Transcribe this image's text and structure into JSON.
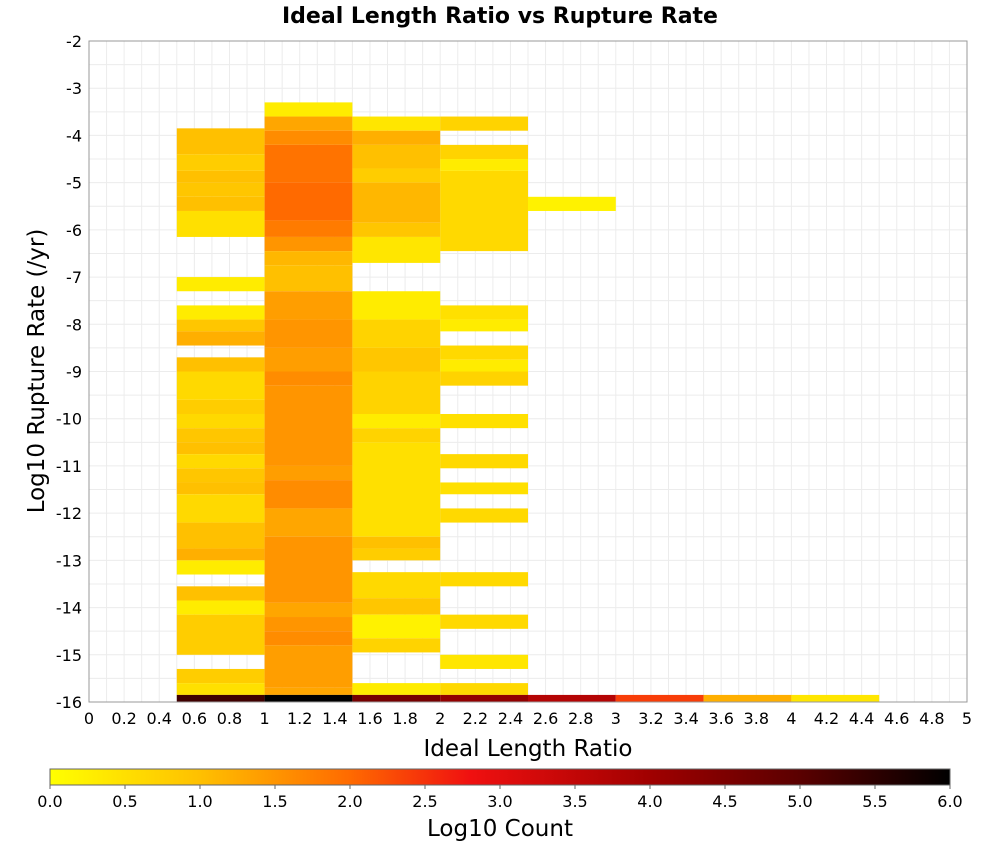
{
  "chart_data": {
    "type": "heatmap",
    "title": "Ideal Length Ratio vs Rupture Rate",
    "xlabel": "Ideal Length Ratio",
    "ylabel": "Log10 Rupture Rate (/yr)",
    "xlim": [
      0,
      5
    ],
    "ylim": [
      -16,
      -2
    ],
    "grid": true,
    "x_ticks": [
      "0",
      "0.2",
      "0.4",
      "0.6",
      "0.8",
      "1",
      "1.2",
      "1.4",
      "1.6",
      "1.8",
      "2",
      "2.2",
      "2.4",
      "2.6",
      "2.8",
      "3",
      "3.2",
      "3.4",
      "3.6",
      "3.8",
      "4",
      "4.2",
      "4.4",
      "4.6",
      "4.8",
      "5"
    ],
    "y_ticks": [
      "-2",
      "-3",
      "-4",
      "-5",
      "-6",
      "-7",
      "-8",
      "-9",
      "-10",
      "-11",
      "-12",
      "-13",
      "-14",
      "-15",
      "-16"
    ],
    "bin_width": 0.5,
    "colorbar": {
      "label": "Log10 Count",
      "range": [
        0,
        6
      ],
      "ticks": [
        "0.0",
        "0.5",
        "1.0",
        "1.5",
        "2.0",
        "2.5",
        "3.0",
        "3.5",
        "4.0",
        "4.5",
        "5.0",
        "5.5",
        "6.0"
      ],
      "stops": [
        {
          "value": 0.0,
          "color": "#FFFF00"
        },
        {
          "value": 1.0,
          "color": "#FFC000"
        },
        {
          "value": 2.0,
          "color": "#FF6A00"
        },
        {
          "value": 2.8,
          "color": "#F01010"
        },
        {
          "value": 4.0,
          "color": "#A00000"
        },
        {
          "value": 5.0,
          "color": "#5A0000"
        },
        {
          "value": 6.0,
          "color": "#000000"
        }
      ]
    },
    "columns": [
      {
        "x0": 0.5,
        "cells": [
          {
            "y0": -4.4,
            "y1": -3.85,
            "v": 1.0
          },
          {
            "y0": -4.75,
            "y1": -4.4,
            "v": 0.8
          },
          {
            "y0": -5.0,
            "y1": -4.75,
            "v": 1.0
          },
          {
            "y0": -5.3,
            "y1": -5.0,
            "v": 0.9
          },
          {
            "y0": -5.6,
            "y1": -5.3,
            "v": 1.0
          },
          {
            "y0": -6.15,
            "y1": -5.6,
            "v": 0.5
          },
          {
            "y0": -7.3,
            "y1": -7.0,
            "v": 0.3
          },
          {
            "y0": -7.9,
            "y1": -7.6,
            "v": 0.3
          },
          {
            "y0": -8.15,
            "y1": -7.9,
            "v": 0.9
          },
          {
            "y0": -8.45,
            "y1": -8.15,
            "v": 1.2
          },
          {
            "y0": -9.0,
            "y1": -8.7,
            "v": 1.0
          },
          {
            "y0": -9.6,
            "y1": -9.0,
            "v": 0.6
          },
          {
            "y0": -9.9,
            "y1": -9.6,
            "v": 0.8
          },
          {
            "y0": -10.2,
            "y1": -9.9,
            "v": 0.6
          },
          {
            "y0": -10.5,
            "y1": -10.2,
            "v": 0.9
          },
          {
            "y0": -10.75,
            "y1": -10.5,
            "v": 1.0
          },
          {
            "y0": -11.05,
            "y1": -10.75,
            "v": 0.6
          },
          {
            "y0": -11.35,
            "y1": -11.05,
            "v": 0.9
          },
          {
            "y0": -11.6,
            "y1": -11.35,
            "v": 1.0
          },
          {
            "y0": -12.2,
            "y1": -11.6,
            "v": 0.6
          },
          {
            "y0": -12.75,
            "y1": -12.2,
            "v": 1.0
          },
          {
            "y0": -13.0,
            "y1": -12.75,
            "v": 1.2
          },
          {
            "y0": -13.3,
            "y1": -13.0,
            "v": 0.3
          },
          {
            "y0": -13.85,
            "y1": -13.55,
            "v": 1.0
          },
          {
            "y0": -14.15,
            "y1": -13.85,
            "v": 0.3
          },
          {
            "y0": -15.0,
            "y1": -14.15,
            "v": 0.8
          },
          {
            "y0": -15.6,
            "y1": -15.3,
            "v": 0.8
          },
          {
            "y0": -15.85,
            "y1": -15.6,
            "v": 0.5
          },
          {
            "y0": -16.0,
            "y1": -15.85,
            "v": 5.3
          }
        ]
      },
      {
        "x0": 1.0,
        "cells": [
          {
            "y0": -3.6,
            "y1": -3.3,
            "v": 0.3
          },
          {
            "y0": -3.9,
            "y1": -3.6,
            "v": 1.3
          },
          {
            "y0": -4.2,
            "y1": -3.9,
            "v": 1.6
          },
          {
            "y0": -5.0,
            "y1": -4.2,
            "v": 1.9
          },
          {
            "y0": -5.8,
            "y1": -5.0,
            "v": 2.0
          },
          {
            "y0": -6.15,
            "y1": -5.8,
            "v": 1.8
          },
          {
            "y0": -6.45,
            "y1": -6.15,
            "v": 1.5
          },
          {
            "y0": -6.75,
            "y1": -6.45,
            "v": 1.1
          },
          {
            "y0": -7.3,
            "y1": -6.75,
            "v": 1.0
          },
          {
            "y0": -7.9,
            "y1": -7.3,
            "v": 1.4
          },
          {
            "y0": -8.5,
            "y1": -7.9,
            "v": 1.5
          },
          {
            "y0": -9.0,
            "y1": -8.5,
            "v": 1.4
          },
          {
            "y0": -9.3,
            "y1": -9.0,
            "v": 1.6
          },
          {
            "y0": -11.0,
            "y1": -9.3,
            "v": 1.5
          },
          {
            "y0": -11.3,
            "y1": -11.0,
            "v": 1.4
          },
          {
            "y0": -11.9,
            "y1": -11.3,
            "v": 1.6
          },
          {
            "y0": -12.5,
            "y1": -11.9,
            "v": 1.3
          },
          {
            "y0": -13.9,
            "y1": -12.5,
            "v": 1.5
          },
          {
            "y0": -14.2,
            "y1": -13.9,
            "v": 1.3
          },
          {
            "y0": -14.5,
            "y1": -14.2,
            "v": 1.5
          },
          {
            "y0": -14.8,
            "y1": -14.5,
            "v": 1.6
          },
          {
            "y0": -15.7,
            "y1": -14.8,
            "v": 1.4
          },
          {
            "y0": -15.85,
            "y1": -15.7,
            "v": 1.3
          },
          {
            "y0": -16.0,
            "y1": -15.85,
            "v": 6.0
          }
        ]
      },
      {
        "x0": 1.5,
        "cells": [
          {
            "y0": -3.9,
            "y1": -3.6,
            "v": 0.4
          },
          {
            "y0": -4.2,
            "y1": -3.9,
            "v": 1.2
          },
          {
            "y0": -4.7,
            "y1": -4.2,
            "v": 1.0
          },
          {
            "y0": -5.0,
            "y1": -4.7,
            "v": 0.8
          },
          {
            "y0": -5.85,
            "y1": -5.0,
            "v": 1.1
          },
          {
            "y0": -6.15,
            "y1": -5.85,
            "v": 0.9
          },
          {
            "y0": -6.7,
            "y1": -6.15,
            "v": 0.4
          },
          {
            "y0": -7.9,
            "y1": -7.3,
            "v": 0.3
          },
          {
            "y0": -8.5,
            "y1": -7.9,
            "v": 0.7
          },
          {
            "y0": -9.0,
            "y1": -8.5,
            "v": 0.9
          },
          {
            "y0": -9.9,
            "y1": -9.0,
            "v": 0.7
          },
          {
            "y0": -10.2,
            "y1": -9.9,
            "v": 0.3
          },
          {
            "y0": -10.5,
            "y1": -10.2,
            "v": 0.7
          },
          {
            "y0": -12.5,
            "y1": -10.5,
            "v": 0.5
          },
          {
            "y0": -12.75,
            "y1": -12.5,
            "v": 1.0
          },
          {
            "y0": -13.0,
            "y1": -12.75,
            "v": 0.8
          },
          {
            "y0": -13.8,
            "y1": -13.25,
            "v": 0.6
          },
          {
            "y0": -14.15,
            "y1": -13.8,
            "v": 0.9
          },
          {
            "y0": -14.65,
            "y1": -14.15,
            "v": 0.2
          },
          {
            "y0": -14.95,
            "y1": -14.65,
            "v": 0.7
          },
          {
            "y0": -15.85,
            "y1": -15.6,
            "v": 0.3
          },
          {
            "y0": -16.0,
            "y1": -15.85,
            "v": 4.6
          }
        ]
      },
      {
        "x0": 2.0,
        "cells": [
          {
            "y0": -3.9,
            "y1": -3.6,
            "v": 0.7
          },
          {
            "y0": -4.5,
            "y1": -4.2,
            "v": 0.7
          },
          {
            "y0": -4.75,
            "y1": -4.5,
            "v": 0.3
          },
          {
            "y0": -6.45,
            "y1": -4.75,
            "v": 0.6
          },
          {
            "y0": -7.9,
            "y1": -7.6,
            "v": 0.5
          },
          {
            "y0": -8.15,
            "y1": -7.9,
            "v": 0.3
          },
          {
            "y0": -8.75,
            "y1": -8.45,
            "v": 0.6
          },
          {
            "y0": -9.0,
            "y1": -8.75,
            "v": 0.3
          },
          {
            "y0": -9.3,
            "y1": -9.0,
            "v": 0.7
          },
          {
            "y0": -10.2,
            "y1": -9.9,
            "v": 0.5
          },
          {
            "y0": -11.05,
            "y1": -10.75,
            "v": 0.6
          },
          {
            "y0": -11.6,
            "y1": -11.35,
            "v": 0.5
          },
          {
            "y0": -12.2,
            "y1": -11.9,
            "v": 0.6
          },
          {
            "y0": -13.55,
            "y1": -13.25,
            "v": 0.6
          },
          {
            "y0": -14.45,
            "y1": -14.15,
            "v": 0.6
          },
          {
            "y0": -15.3,
            "y1": -15.0,
            "v": 0.4
          },
          {
            "y0": -15.85,
            "y1": -15.6,
            "v": 0.6
          },
          {
            "y0": -16.0,
            "y1": -15.85,
            "v": 4.2
          }
        ]
      },
      {
        "x0": 2.5,
        "cells": [
          {
            "y0": -5.6,
            "y1": -5.3,
            "v": 0.2
          },
          {
            "y0": -16.0,
            "y1": -15.85,
            "v": 3.7
          }
        ]
      },
      {
        "x0": 3.0,
        "cells": [
          {
            "y0": -16.0,
            "y1": -15.85,
            "v": 2.4
          }
        ]
      },
      {
        "x0": 3.5,
        "cells": [
          {
            "y0": -16.0,
            "y1": -15.85,
            "v": 1.2
          }
        ]
      },
      {
        "x0": 4.0,
        "cells": [
          {
            "y0": -16.0,
            "y1": -15.85,
            "v": 0.4
          }
        ]
      }
    ]
  }
}
